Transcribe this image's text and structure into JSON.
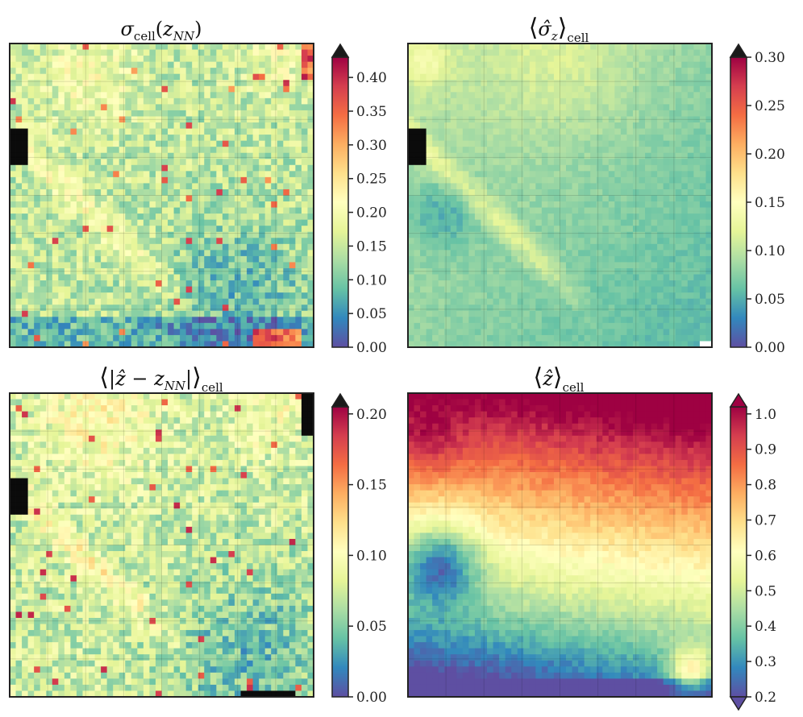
{
  "chart_data": [
    {
      "type": "heatmap",
      "title": "σcell(zNN)",
      "title_parts": {
        "symbol": "σ",
        "sub": "cell",
        "open": "(",
        "arg": "z",
        "arg_sub": "NN",
        "close": ")"
      },
      "colorbar": {
        "vmin": 0.0,
        "vmax": 0.43,
        "extend": "max",
        "ticks": [
          0.0,
          0.05,
          0.1,
          0.15,
          0.2,
          0.25,
          0.3,
          0.35,
          0.4
        ],
        "tick_labels": [
          "0.00",
          "0.05",
          "0.10",
          "0.15",
          "0.20",
          "0.25",
          "0.30",
          "0.35",
          "0.40"
        ]
      },
      "grid": true,
      "field": {
        "kind": "sigma",
        "black_left": true,
        "black_topright": false,
        "black_bottomright": false
      }
    },
    {
      "type": "heatmap",
      "title": "⟨σ̂z⟩cell",
      "title_parts": {
        "symbol": "σ̂",
        "sub": "z",
        "outer_sub": "cell"
      },
      "colorbar": {
        "vmin": 0.0,
        "vmax": 0.3,
        "extend": "max",
        "ticks": [
          0.0,
          0.05,
          0.1,
          0.15,
          0.2,
          0.25,
          0.3
        ],
        "tick_labels": [
          "0.00",
          "0.05",
          "0.10",
          "0.15",
          "0.20",
          "0.25",
          "0.30"
        ]
      },
      "grid": true,
      "field": {
        "kind": "sigmahat",
        "black_left": true
      }
    },
    {
      "type": "heatmap",
      "title": "⟨|ẑ − zNN|⟩cell",
      "title_parts": {
        "lhs": "|ẑ − z",
        "sub": "NN",
        "rhs": "|",
        "outer_sub": "cell"
      },
      "colorbar": {
        "vmin": 0.0,
        "vmax": 0.205,
        "extend": "max",
        "ticks": [
          0.0,
          0.05,
          0.1,
          0.15,
          0.2
        ],
        "tick_labels": [
          "0.00",
          "0.05",
          "0.10",
          "0.15",
          "0.20"
        ]
      },
      "grid": true,
      "field": {
        "kind": "abserr",
        "black_left": true,
        "black_topright": true,
        "black_bottomright": true
      }
    },
    {
      "type": "heatmap",
      "title": "⟨ẑ⟩cell",
      "title_parts": {
        "symbol": "ẑ",
        "outer_sub": "cell"
      },
      "colorbar": {
        "vmin": 0.2,
        "vmax": 1.02,
        "extend": "both",
        "ticks": [
          0.2,
          0.3,
          0.4,
          0.5,
          0.6,
          0.7,
          0.8,
          0.9,
          1.0
        ],
        "tick_labels": [
          "0.2",
          "0.3",
          "0.4",
          "0.5",
          "0.6",
          "0.7",
          "0.8",
          "0.9",
          "1.0"
        ]
      },
      "grid": true,
      "field": {
        "kind": "zmean"
      }
    }
  ],
  "colors": {
    "spectral_r": [
      "#5e4fa2",
      "#3288bd",
      "#66c2a5",
      "#abdda4",
      "#e6f598",
      "#ffffbf",
      "#fee08b",
      "#fdae61",
      "#f46d43",
      "#d53e4f",
      "#9e0142"
    ],
    "black": "#0b0b0b",
    "grid": "#000000"
  }
}
